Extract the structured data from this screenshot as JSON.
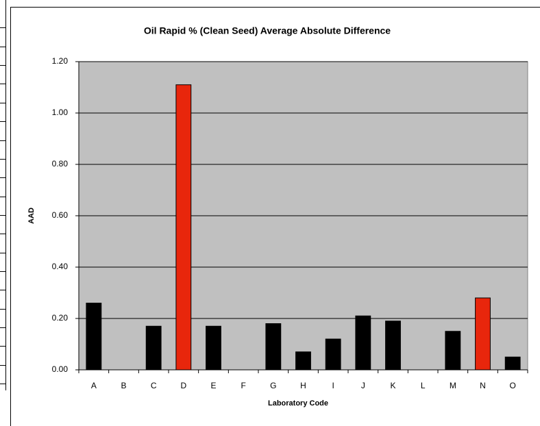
{
  "chart_data": {
    "type": "bar",
    "title": "Oil Rapid % (Clean Seed) Average Absolute Difference",
    "x_label": "Laboratory Code",
    "y_label": "AAD",
    "categories": [
      "A",
      "B",
      "C",
      "D",
      "E",
      "F",
      "G",
      "H",
      "I",
      "J",
      "K",
      "L",
      "M",
      "N",
      "O"
    ],
    "values": [
      0.26,
      null,
      0.17,
      1.11,
      0.17,
      null,
      0.18,
      0.07,
      0.12,
      0.21,
      0.19,
      null,
      0.15,
      0.28,
      0.05
    ],
    "colors": [
      "#000000",
      "#000000",
      "#000000",
      "#e8260c",
      "#000000",
      "#000000",
      "#000000",
      "#000000",
      "#000000",
      "#000000",
      "#000000",
      "#000000",
      "#000000",
      "#e8260c",
      "#000000"
    ],
    "ylim": [
      0,
      1.2
    ],
    "yticks": [
      {
        "value": 0,
        "label": "0.00"
      },
      {
        "value": 0.2,
        "label": "0.20"
      },
      {
        "value": 0.4,
        "label": "0.40"
      },
      {
        "value": 0.6,
        "label": "0.60"
      },
      {
        "value": 0.8,
        "label": "0.80"
      },
      {
        "value": 1.0,
        "label": "1.00"
      },
      {
        "value": 1.2,
        "label": "1.20"
      }
    ],
    "grid": true,
    "plot_background": "#c0c0c0"
  }
}
